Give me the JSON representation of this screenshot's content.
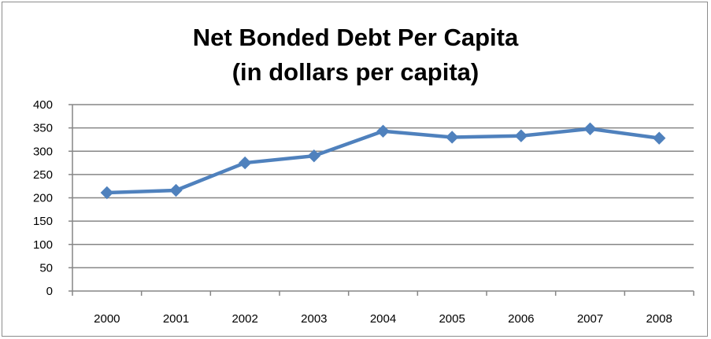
{
  "chart_data": {
    "type": "line",
    "title": "Net Bonded Debt Per Capita",
    "subtitle": "(in dollars per capita)",
    "xlabel": "",
    "ylabel": "",
    "categories": [
      "2000",
      "2001",
      "2002",
      "2003",
      "2004",
      "2005",
      "2006",
      "2007",
      "2008"
    ],
    "series": [
      {
        "values": [
          211,
          216,
          275,
          290,
          343,
          330,
          333,
          348,
          328
        ],
        "color": "#4f81bd",
        "marker": "diamond"
      }
    ],
    "ylim": [
      0,
      400
    ],
    "yticks": [
      0,
      50,
      100,
      150,
      200,
      250,
      300,
      350,
      400
    ],
    "grid": true,
    "legend": "none"
  }
}
